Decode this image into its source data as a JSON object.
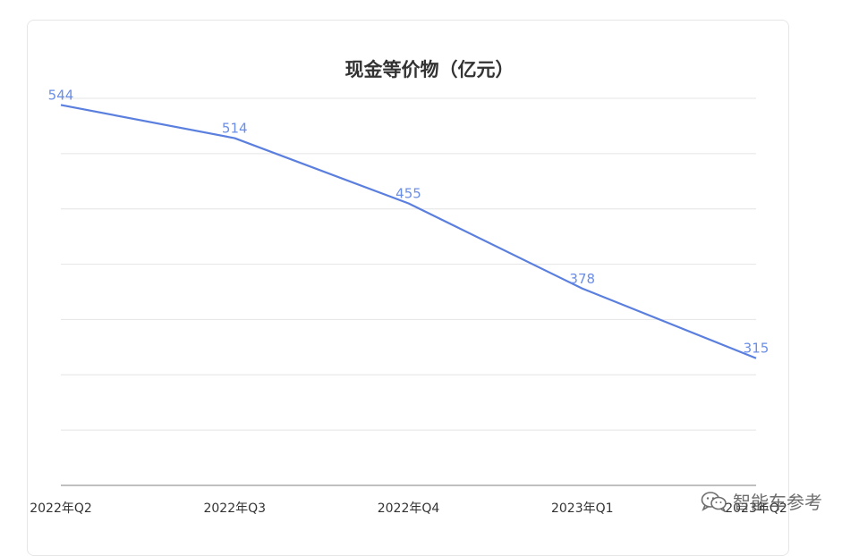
{
  "chart_data": {
    "type": "line",
    "title": "现金等价物（亿元）",
    "categories": [
      "2022年Q2",
      "2022年Q3",
      "2022年Q4",
      "2023年Q1",
      "2023年Q2"
    ],
    "series": [
      {
        "values": [
          544,
          514,
          455,
          378,
          315
        ]
      }
    ],
    "data_labels": [
      "544",
      "514",
      "455",
      "378",
      "315"
    ],
    "ylim": [
      200,
      550
    ],
    "grid": true,
    "line_color": "#5b7fde",
    "label_color": "#6b8ee6",
    "axis_label_color": "#333333"
  },
  "watermark": {
    "text": "智能车参考",
    "icon": "wechat-icon"
  }
}
